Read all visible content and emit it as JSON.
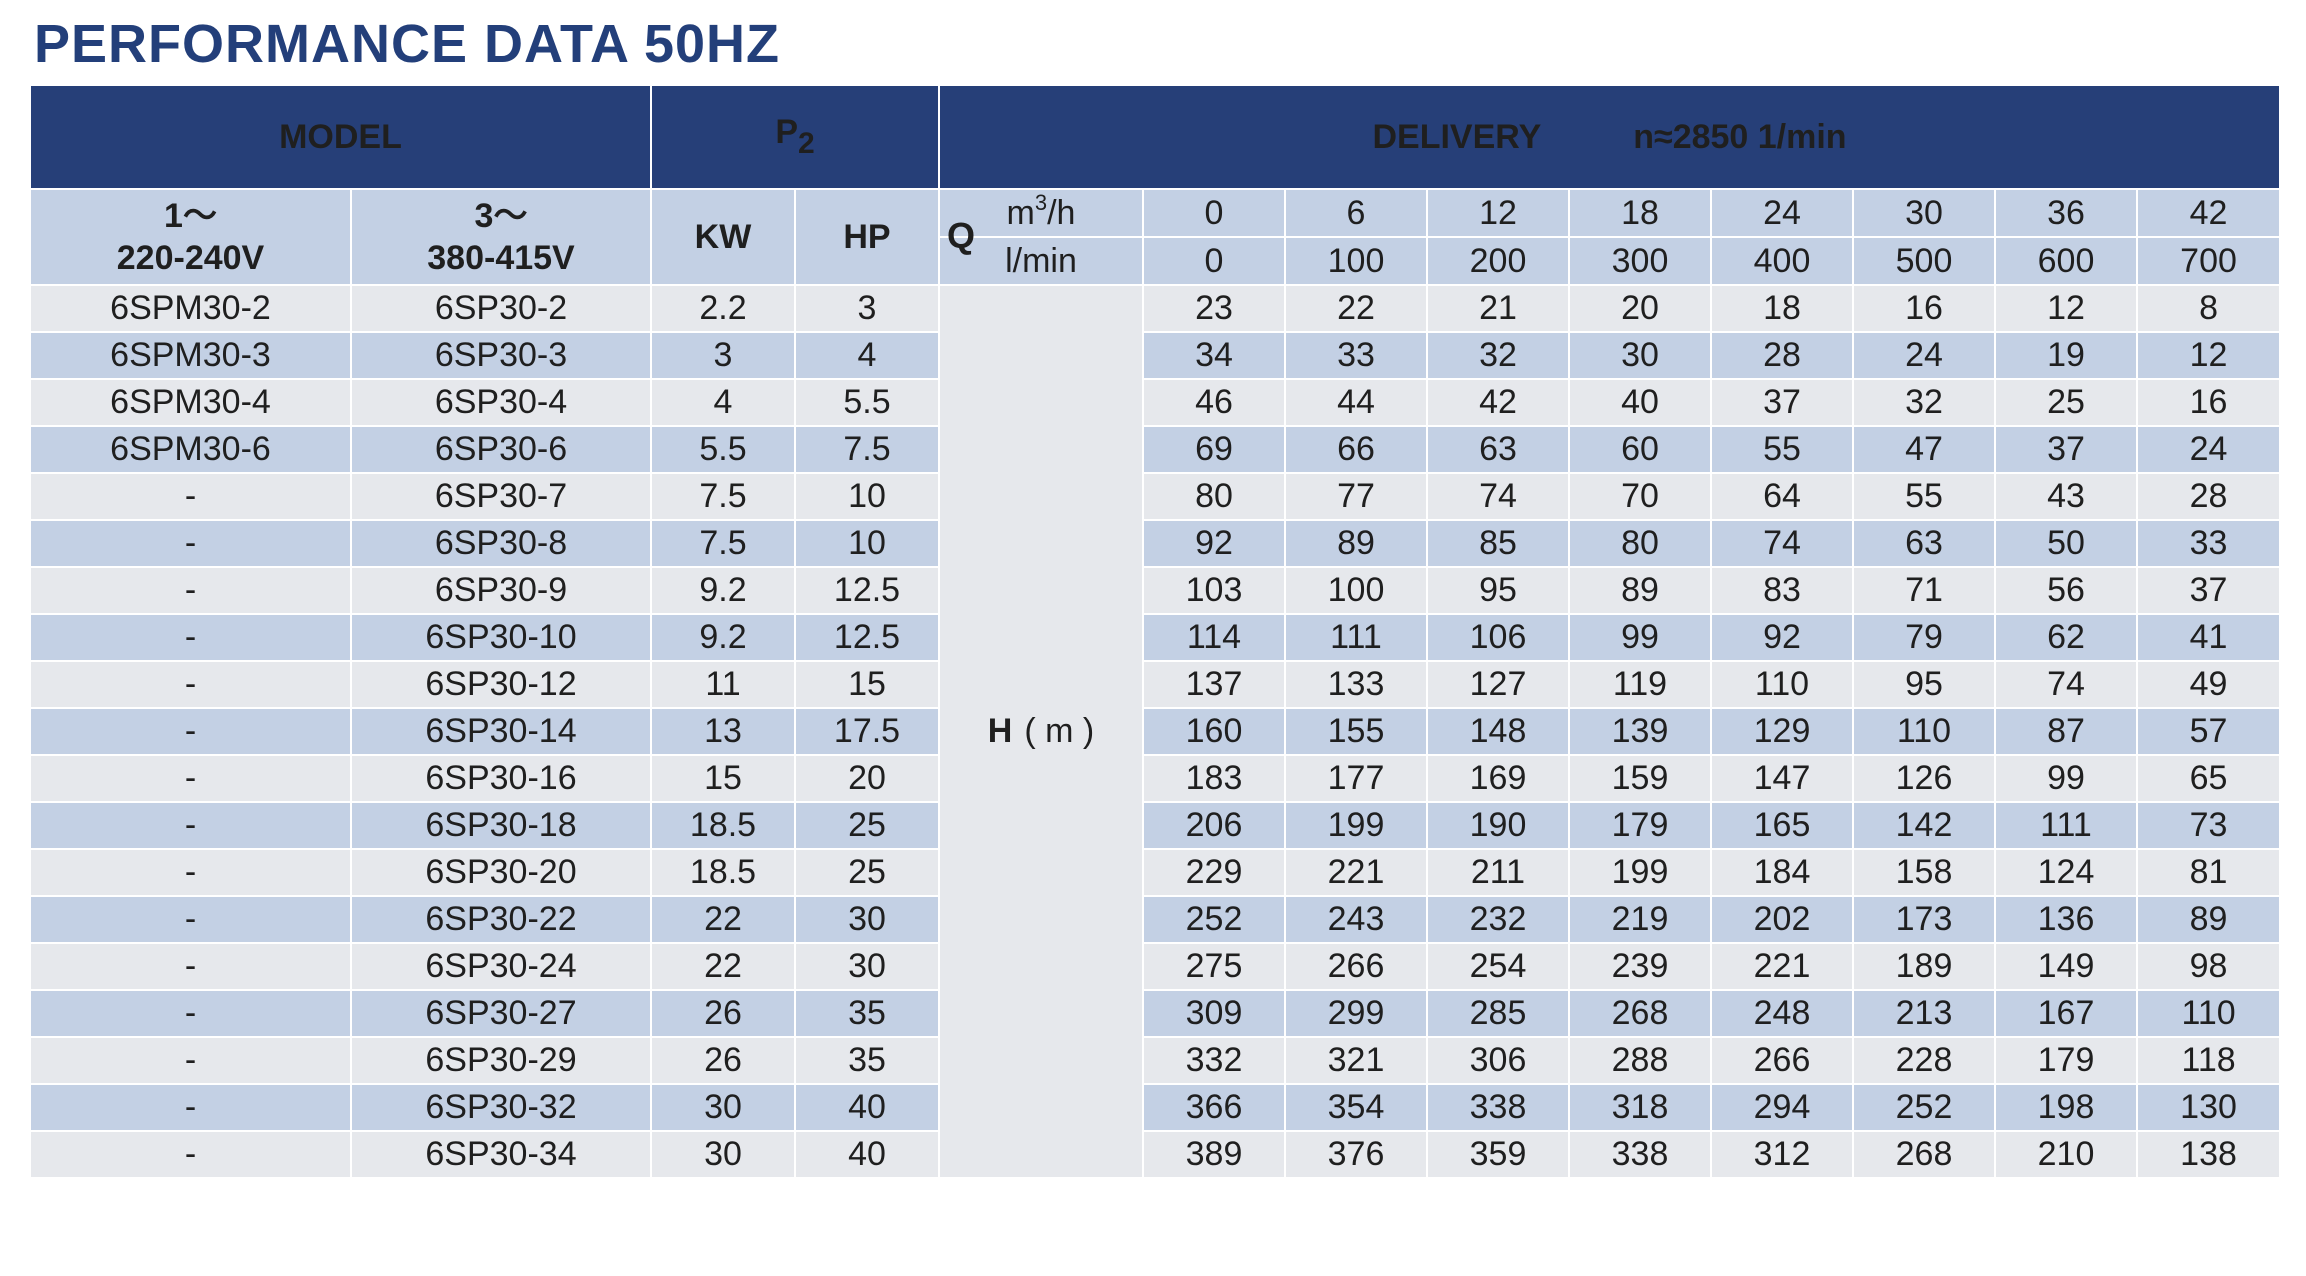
{
  "title": "PERFORMANCE DATA 50HZ",
  "header": {
    "model": "MODEL",
    "p2_main": "P",
    "p2_sub": "2",
    "delivery": "DELIVERY",
    "speed": "n≈2850 1/min",
    "single_phase_top": "1～",
    "single_phase_bottom": "220-240V",
    "three_phase_top": "3～",
    "three_phase_bottom": "380-415V",
    "kw": "KW",
    "hp": "HP",
    "q_letter": "Q",
    "unit_m3h_base": "m",
    "unit_m3h_sup": "3",
    "unit_m3h_tail": "/h",
    "unit_lmin": "l/min",
    "h_letter": "H",
    "h_unit": "( m )"
  },
  "flow_m3h": [
    "0",
    "6",
    "12",
    "18",
    "24",
    "30",
    "36",
    "42"
  ],
  "flow_lmin": [
    "0",
    "100",
    "200",
    "300",
    "400",
    "500",
    "600",
    "700"
  ],
  "rows": [
    {
      "m1": "6SPM30-2",
      "m3": "6SP30-2",
      "kw": "2.2",
      "hp": "3",
      "h": [
        "23",
        "22",
        "21",
        "20",
        "18",
        "16",
        "12",
        "8"
      ]
    },
    {
      "m1": "6SPM30-3",
      "m3": "6SP30-3",
      "kw": "3",
      "hp": "4",
      "h": [
        "34",
        "33",
        "32",
        "30",
        "28",
        "24",
        "19",
        "12"
      ]
    },
    {
      "m1": "6SPM30-4",
      "m3": "6SP30-4",
      "kw": "4",
      "hp": "5.5",
      "h": [
        "46",
        "44",
        "42",
        "40",
        "37",
        "32",
        "25",
        "16"
      ]
    },
    {
      "m1": "6SPM30-6",
      "m3": "6SP30-6",
      "kw": "5.5",
      "hp": "7.5",
      "h": [
        "69",
        "66",
        "63",
        "60",
        "55",
        "47",
        "37",
        "24"
      ]
    },
    {
      "m1": "-",
      "m3": "6SP30-7",
      "kw": "7.5",
      "hp": "10",
      "h": [
        "80",
        "77",
        "74",
        "70",
        "64",
        "55",
        "43",
        "28"
      ]
    },
    {
      "m1": "-",
      "m3": "6SP30-8",
      "kw": "7.5",
      "hp": "10",
      "h": [
        "92",
        "89",
        "85",
        "80",
        "74",
        "63",
        "50",
        "33"
      ]
    },
    {
      "m1": "-",
      "m3": "6SP30-9",
      "kw": "9.2",
      "hp": "12.5",
      "h": [
        "103",
        "100",
        "95",
        "89",
        "83",
        "71",
        "56",
        "37"
      ]
    },
    {
      "m1": "-",
      "m3": "6SP30-10",
      "kw": "9.2",
      "hp": "12.5",
      "h": [
        "114",
        "111",
        "106",
        "99",
        "92",
        "79",
        "62",
        "41"
      ]
    },
    {
      "m1": "-",
      "m3": "6SP30-12",
      "kw": "11",
      "hp": "15",
      "h": [
        "137",
        "133",
        "127",
        "119",
        "110",
        "95",
        "74",
        "49"
      ]
    },
    {
      "m1": "-",
      "m3": "6SP30-14",
      "kw": "13",
      "hp": "17.5",
      "h": [
        "160",
        "155",
        "148",
        "139",
        "129",
        "110",
        "87",
        "57"
      ]
    },
    {
      "m1": "-",
      "m3": "6SP30-16",
      "kw": "15",
      "hp": "20",
      "h": [
        "183",
        "177",
        "169",
        "159",
        "147",
        "126",
        "99",
        "65"
      ]
    },
    {
      "m1": "-",
      "m3": "6SP30-18",
      "kw": "18.5",
      "hp": "25",
      "h": [
        "206",
        "199",
        "190",
        "179",
        "165",
        "142",
        "111",
        "73"
      ]
    },
    {
      "m1": "-",
      "m3": "6SP30-20",
      "kw": "18.5",
      "hp": "25",
      "h": [
        "229",
        "221",
        "211",
        "199",
        "184",
        "158",
        "124",
        "81"
      ]
    },
    {
      "m1": "-",
      "m3": "6SP30-22",
      "kw": "22",
      "hp": "30",
      "h": [
        "252",
        "243",
        "232",
        "219",
        "202",
        "173",
        "136",
        "89"
      ]
    },
    {
      "m1": "-",
      "m3": "6SP30-24",
      "kw": "22",
      "hp": "30",
      "h": [
        "275",
        "266",
        "254",
        "239",
        "221",
        "189",
        "149",
        "98"
      ]
    },
    {
      "m1": "-",
      "m3": "6SP30-27",
      "kw": "26",
      "hp": "35",
      "h": [
        "309",
        "299",
        "285",
        "268",
        "248",
        "213",
        "167",
        "110"
      ]
    },
    {
      "m1": "-",
      "m3": "6SP30-29",
      "kw": "26",
      "hp": "35",
      "h": [
        "332",
        "321",
        "306",
        "288",
        "266",
        "228",
        "179",
        "118"
      ]
    },
    {
      "m1": "-",
      "m3": "6SP30-32",
      "kw": "30",
      "hp": "40",
      "h": [
        "366",
        "354",
        "338",
        "318",
        "294",
        "252",
        "198",
        "130"
      ]
    },
    {
      "m1": "-",
      "m3": "6SP30-34",
      "kw": "30",
      "hp": "40",
      "h": [
        "389",
        "376",
        "359",
        "338",
        "312",
        "268",
        "210",
        "138"
      ]
    }
  ],
  "colors": {
    "header_navy": "#263f78",
    "title_blue": "#233f7a",
    "band_blue": "#c3d0e4",
    "band_grey": "#e6e8ec"
  }
}
